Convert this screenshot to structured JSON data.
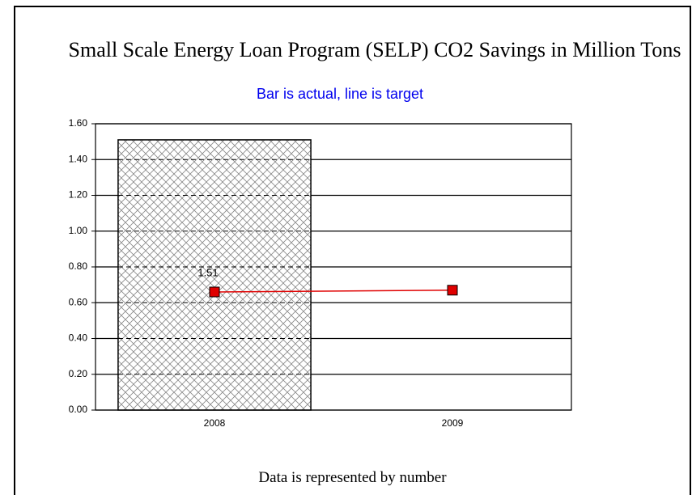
{
  "chart_data": {
    "type": "bar",
    "title": "Small Scale Energy Loan Program (SELP) CO2 Savings in Million Tons",
    "subtitle": "Bar is actual, line is target",
    "footer": "Data is represented by number",
    "categories": [
      "2008",
      "2009"
    ],
    "series": [
      {
        "type": "bar",
        "color": "#888888",
        "values": [
          1.51,
          null
        ]
      },
      {
        "type": "line",
        "color": "#e00000",
        "values": [
          0.66,
          0.67
        ]
      }
    ],
    "ylim": [
      0,
      1.6
    ],
    "yticks": [
      {
        "value": 0,
        "label": "0.00"
      },
      {
        "value": 0.2,
        "label": "0.20"
      },
      {
        "value": 0.4,
        "label": "0.40"
      },
      {
        "value": 0.6,
        "label": "0.60"
      },
      {
        "value": 0.8,
        "label": "0.80"
      },
      {
        "value": 1.0,
        "label": "1.00"
      },
      {
        "value": 1.2,
        "label": "1.20"
      },
      {
        "value": 1.4,
        "label": "1.40"
      },
      {
        "value": 1.6,
        "label": "1.60"
      }
    ],
    "grid": true
  }
}
